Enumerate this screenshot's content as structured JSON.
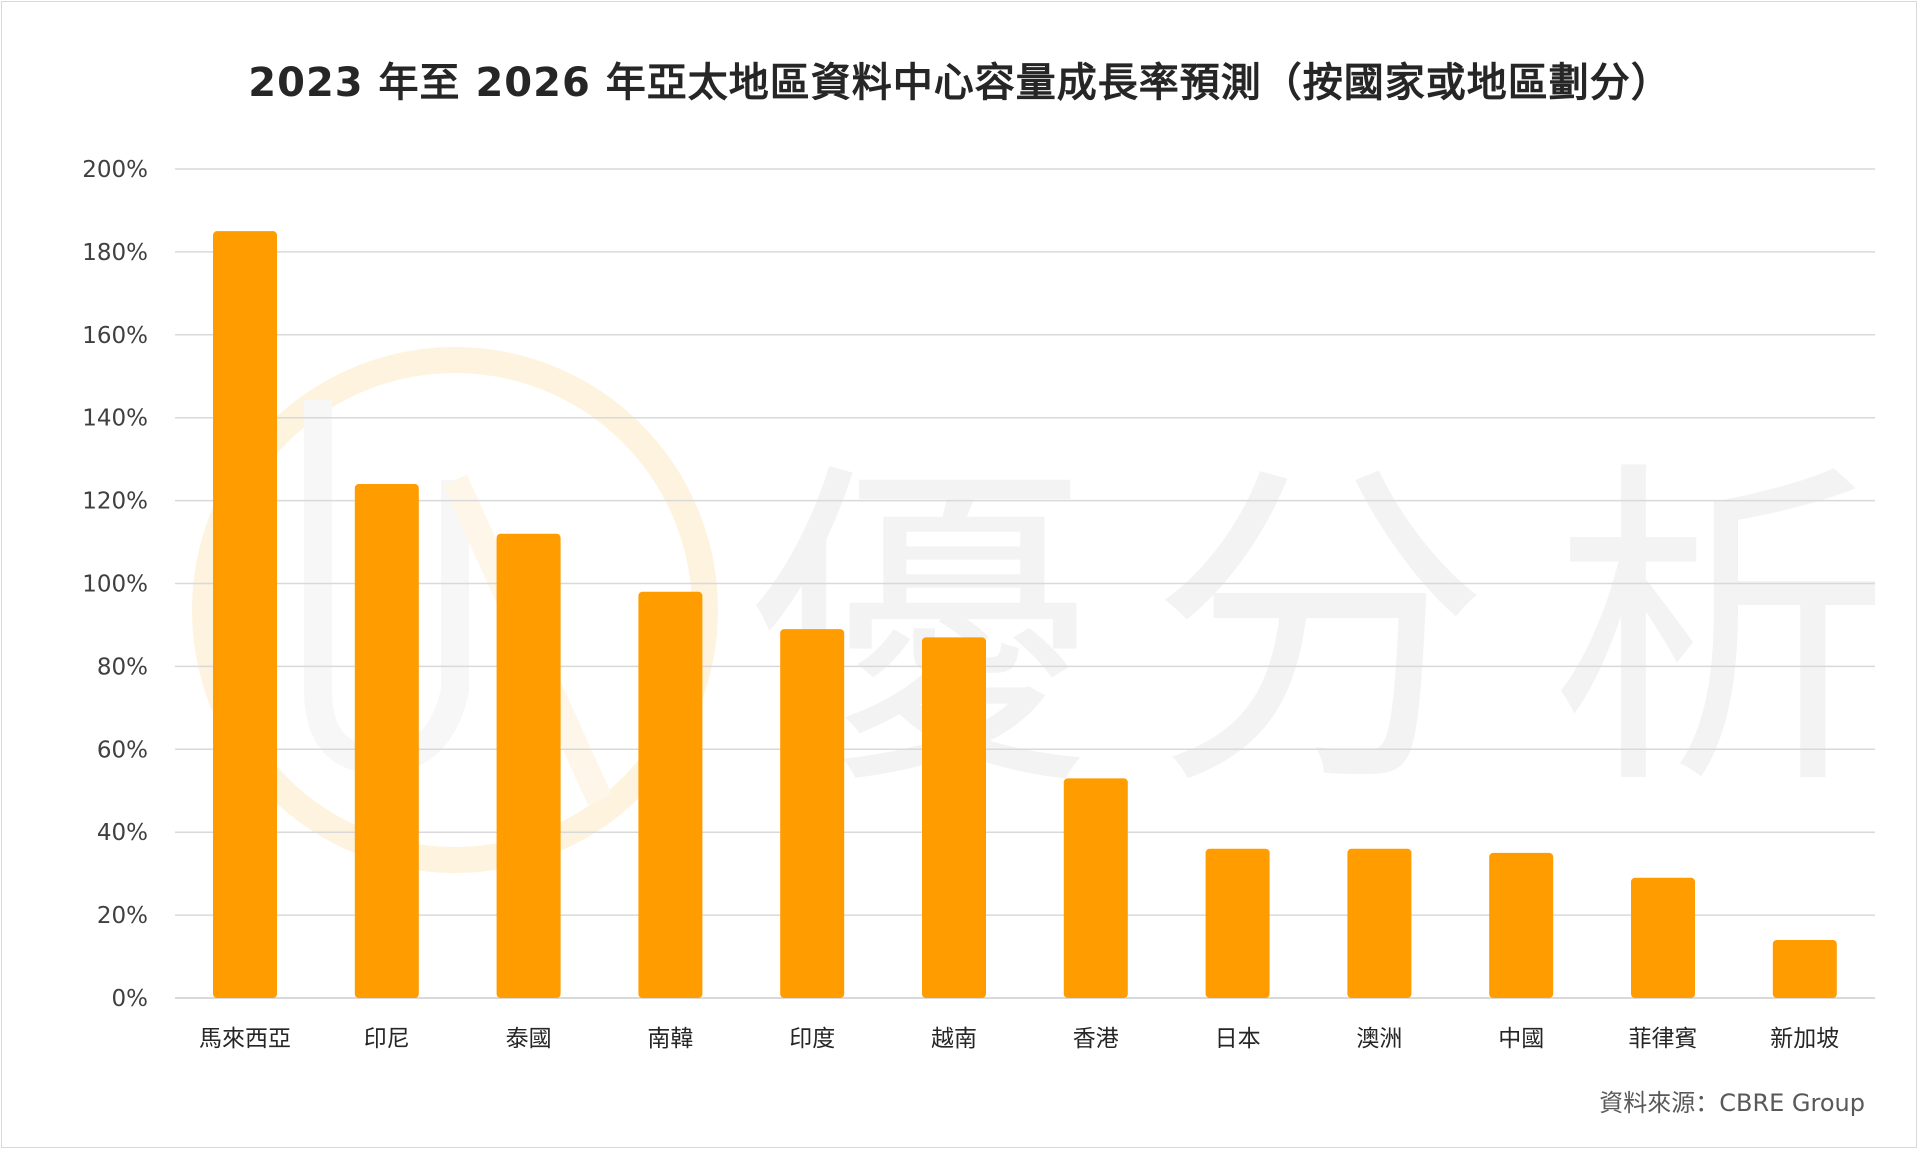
{
  "chart_data": {
    "type": "bar",
    "title": "2023 年至 2026 年亞太地區資料中心容量成長率預測（按國家或地區劃分）",
    "xlabel": "",
    "ylabel": "",
    "categories": [
      "馬來西亞",
      "印尼",
      "泰國",
      "南韓",
      "印度",
      "越南",
      "香港",
      "日本",
      "澳洲",
      "中國",
      "菲律賓",
      "新加坡"
    ],
    "values": [
      185,
      124,
      112,
      98,
      89,
      87,
      53,
      36,
      36,
      35,
      29,
      14
    ],
    "ylim": [
      0,
      200
    ],
    "y_ticks": [
      "0%",
      "20%",
      "40%",
      "60%",
      "80%",
      "100%",
      "120%",
      "140%",
      "160%",
      "180%",
      "200%"
    ],
    "y_tick_values": [
      0,
      20,
      40,
      60,
      80,
      100,
      120,
      140,
      160,
      180,
      200
    ],
    "grid": true,
    "legend": "none",
    "bar_color": "#FF9C00",
    "grid_color": "#d9d9d9"
  },
  "source_note": "資料來源：CBRE Group",
  "watermark": {
    "text": "優分析",
    "logo": "U-logo-icon",
    "color": "#f2f2f2"
  }
}
